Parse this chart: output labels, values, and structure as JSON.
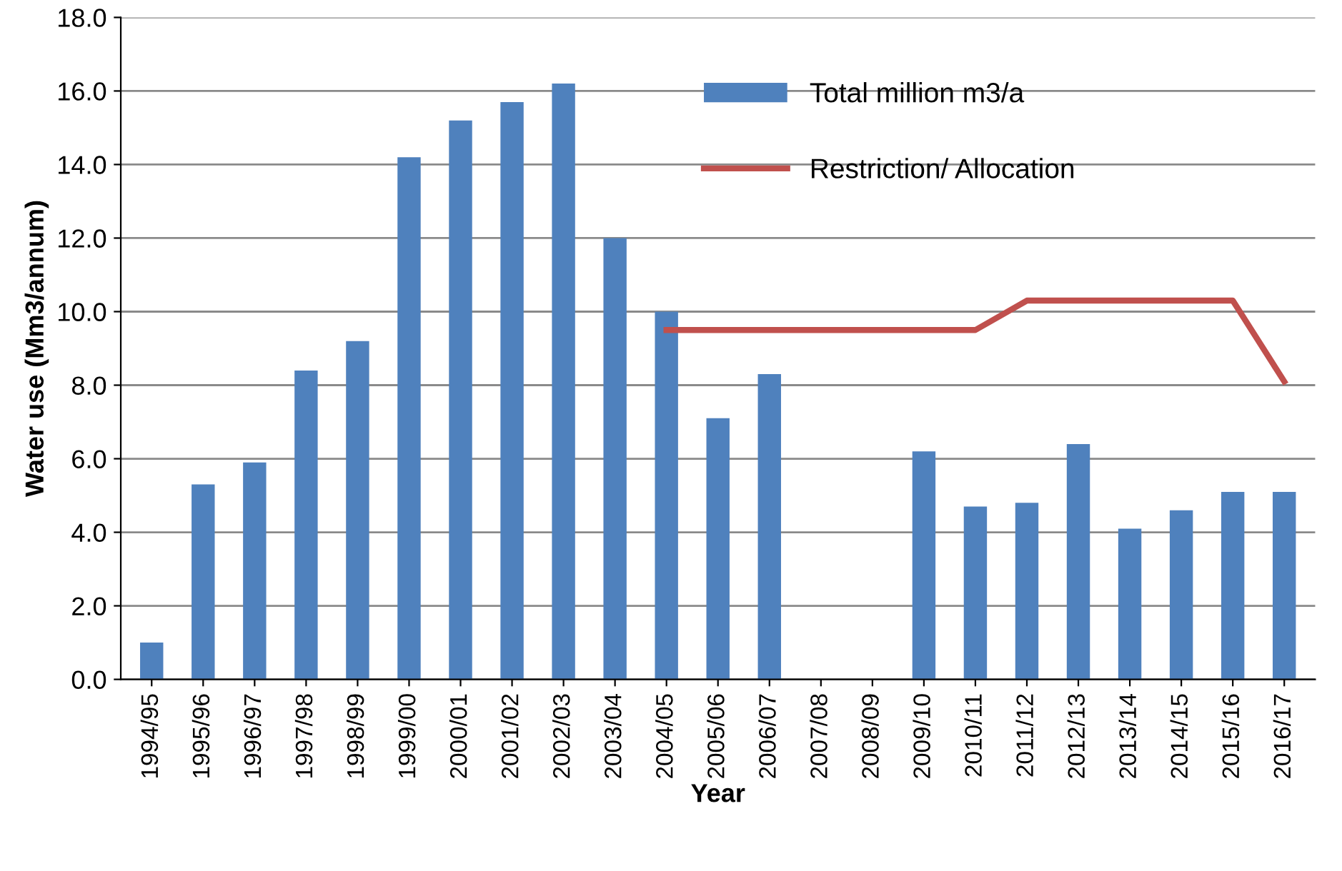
{
  "chart_data": {
    "type": "bar",
    "xlabel": "Year",
    "ylabel": "Water use (Mm3/annum)",
    "categories": [
      "1994/95",
      "1995/96",
      "1996/97",
      "1997/98",
      "1998/99",
      "1999/00",
      "2000/01",
      "2001/02",
      "2002/03",
      "2003/04",
      "2004/05",
      "2005/06",
      "2006/07",
      "2007/08",
      "2008/09",
      "2009/10",
      "2010/11",
      "2011/12",
      "2012/13",
      "2013/14",
      "2014/15",
      "2015/16",
      "2016/17"
    ],
    "series": [
      {
        "name": "Total million m3/a",
        "color": "#4f81bd",
        "values": [
          1.0,
          5.3,
          5.9,
          8.4,
          9.2,
          14.2,
          15.2,
          15.7,
          16.2,
          12.0,
          10.0,
          7.1,
          8.3,
          null,
          null,
          6.2,
          4.7,
          4.8,
          6.4,
          4.1,
          4.6,
          5.1,
          5.1
        ]
      },
      {
        "name": "Restriction/ Allocation",
        "type": "line",
        "color": "#c0504d",
        "values": [
          null,
          null,
          null,
          null,
          null,
          null,
          null,
          null,
          null,
          null,
          9.5,
          9.5,
          9.5,
          9.5,
          9.5,
          9.5,
          9.5,
          10.3,
          10.3,
          10.3,
          10.3,
          10.3,
          8.1
        ]
      }
    ],
    "ylim": [
      0,
      18
    ],
    "yticks": [
      {
        "value": 0,
        "label": "0.0"
      },
      {
        "value": 2,
        "label": "2.0"
      },
      {
        "value": 4,
        "label": "4.0"
      },
      {
        "value": 6,
        "label": "6.0"
      },
      {
        "value": 8,
        "label": "8.0"
      },
      {
        "value": 10,
        "label": "10.0"
      },
      {
        "value": 12,
        "label": "12.0"
      },
      {
        "value": 14,
        "label": "14.0"
      },
      {
        "value": 16,
        "label": "16.0"
      },
      {
        "value": 18,
        "label": "18.0"
      }
    ],
    "grid": "y",
    "legend": "top right",
    "marker": "none",
    "line_style": "solid"
  }
}
